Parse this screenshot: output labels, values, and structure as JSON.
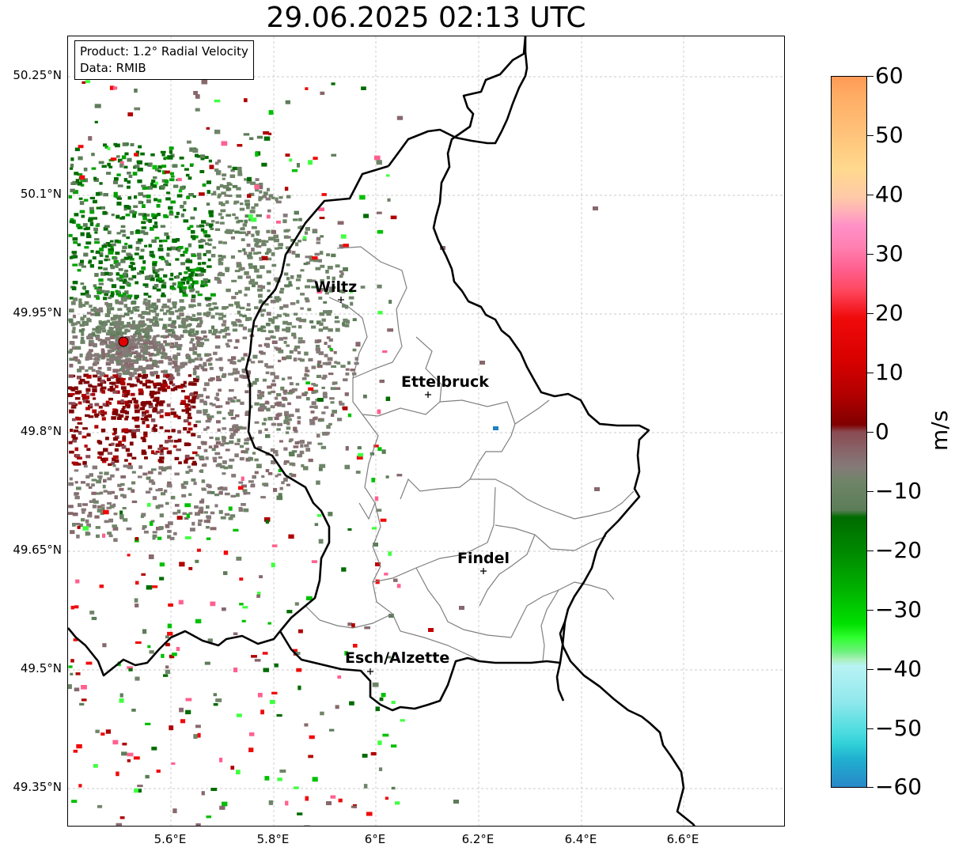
{
  "title": "29.06.2025 02:13 UTC",
  "info": {
    "product": "Product: 1.2° Radial Velocity",
    "data": "Data: RMIB"
  },
  "axes": {
    "lat_labels": [
      "50.25°N",
      "50.1°N",
      "49.95°N",
      "49.8°N",
      "49.65°N",
      "49.5°N",
      "49.35°N"
    ],
    "lon_labels": [
      "5.6°E",
      "5.8°E",
      "6°E",
      "6.2°E",
      "6.4°E",
      "6.6°E"
    ]
  },
  "colorbar": {
    "unit": "m/s",
    "ticks": [
      "60",
      "50",
      "40",
      "30",
      "20",
      "10",
      "0",
      "−10",
      "−20",
      "−30",
      "−40",
      "−50",
      "−60"
    ],
    "min": -60,
    "max": 60
  },
  "cities": [
    {
      "name": "Wiltz"
    },
    {
      "name": "Ettelbruck"
    },
    {
      "name": "Findel"
    },
    {
      "name": "Esch/Alzette"
    }
  ]
}
